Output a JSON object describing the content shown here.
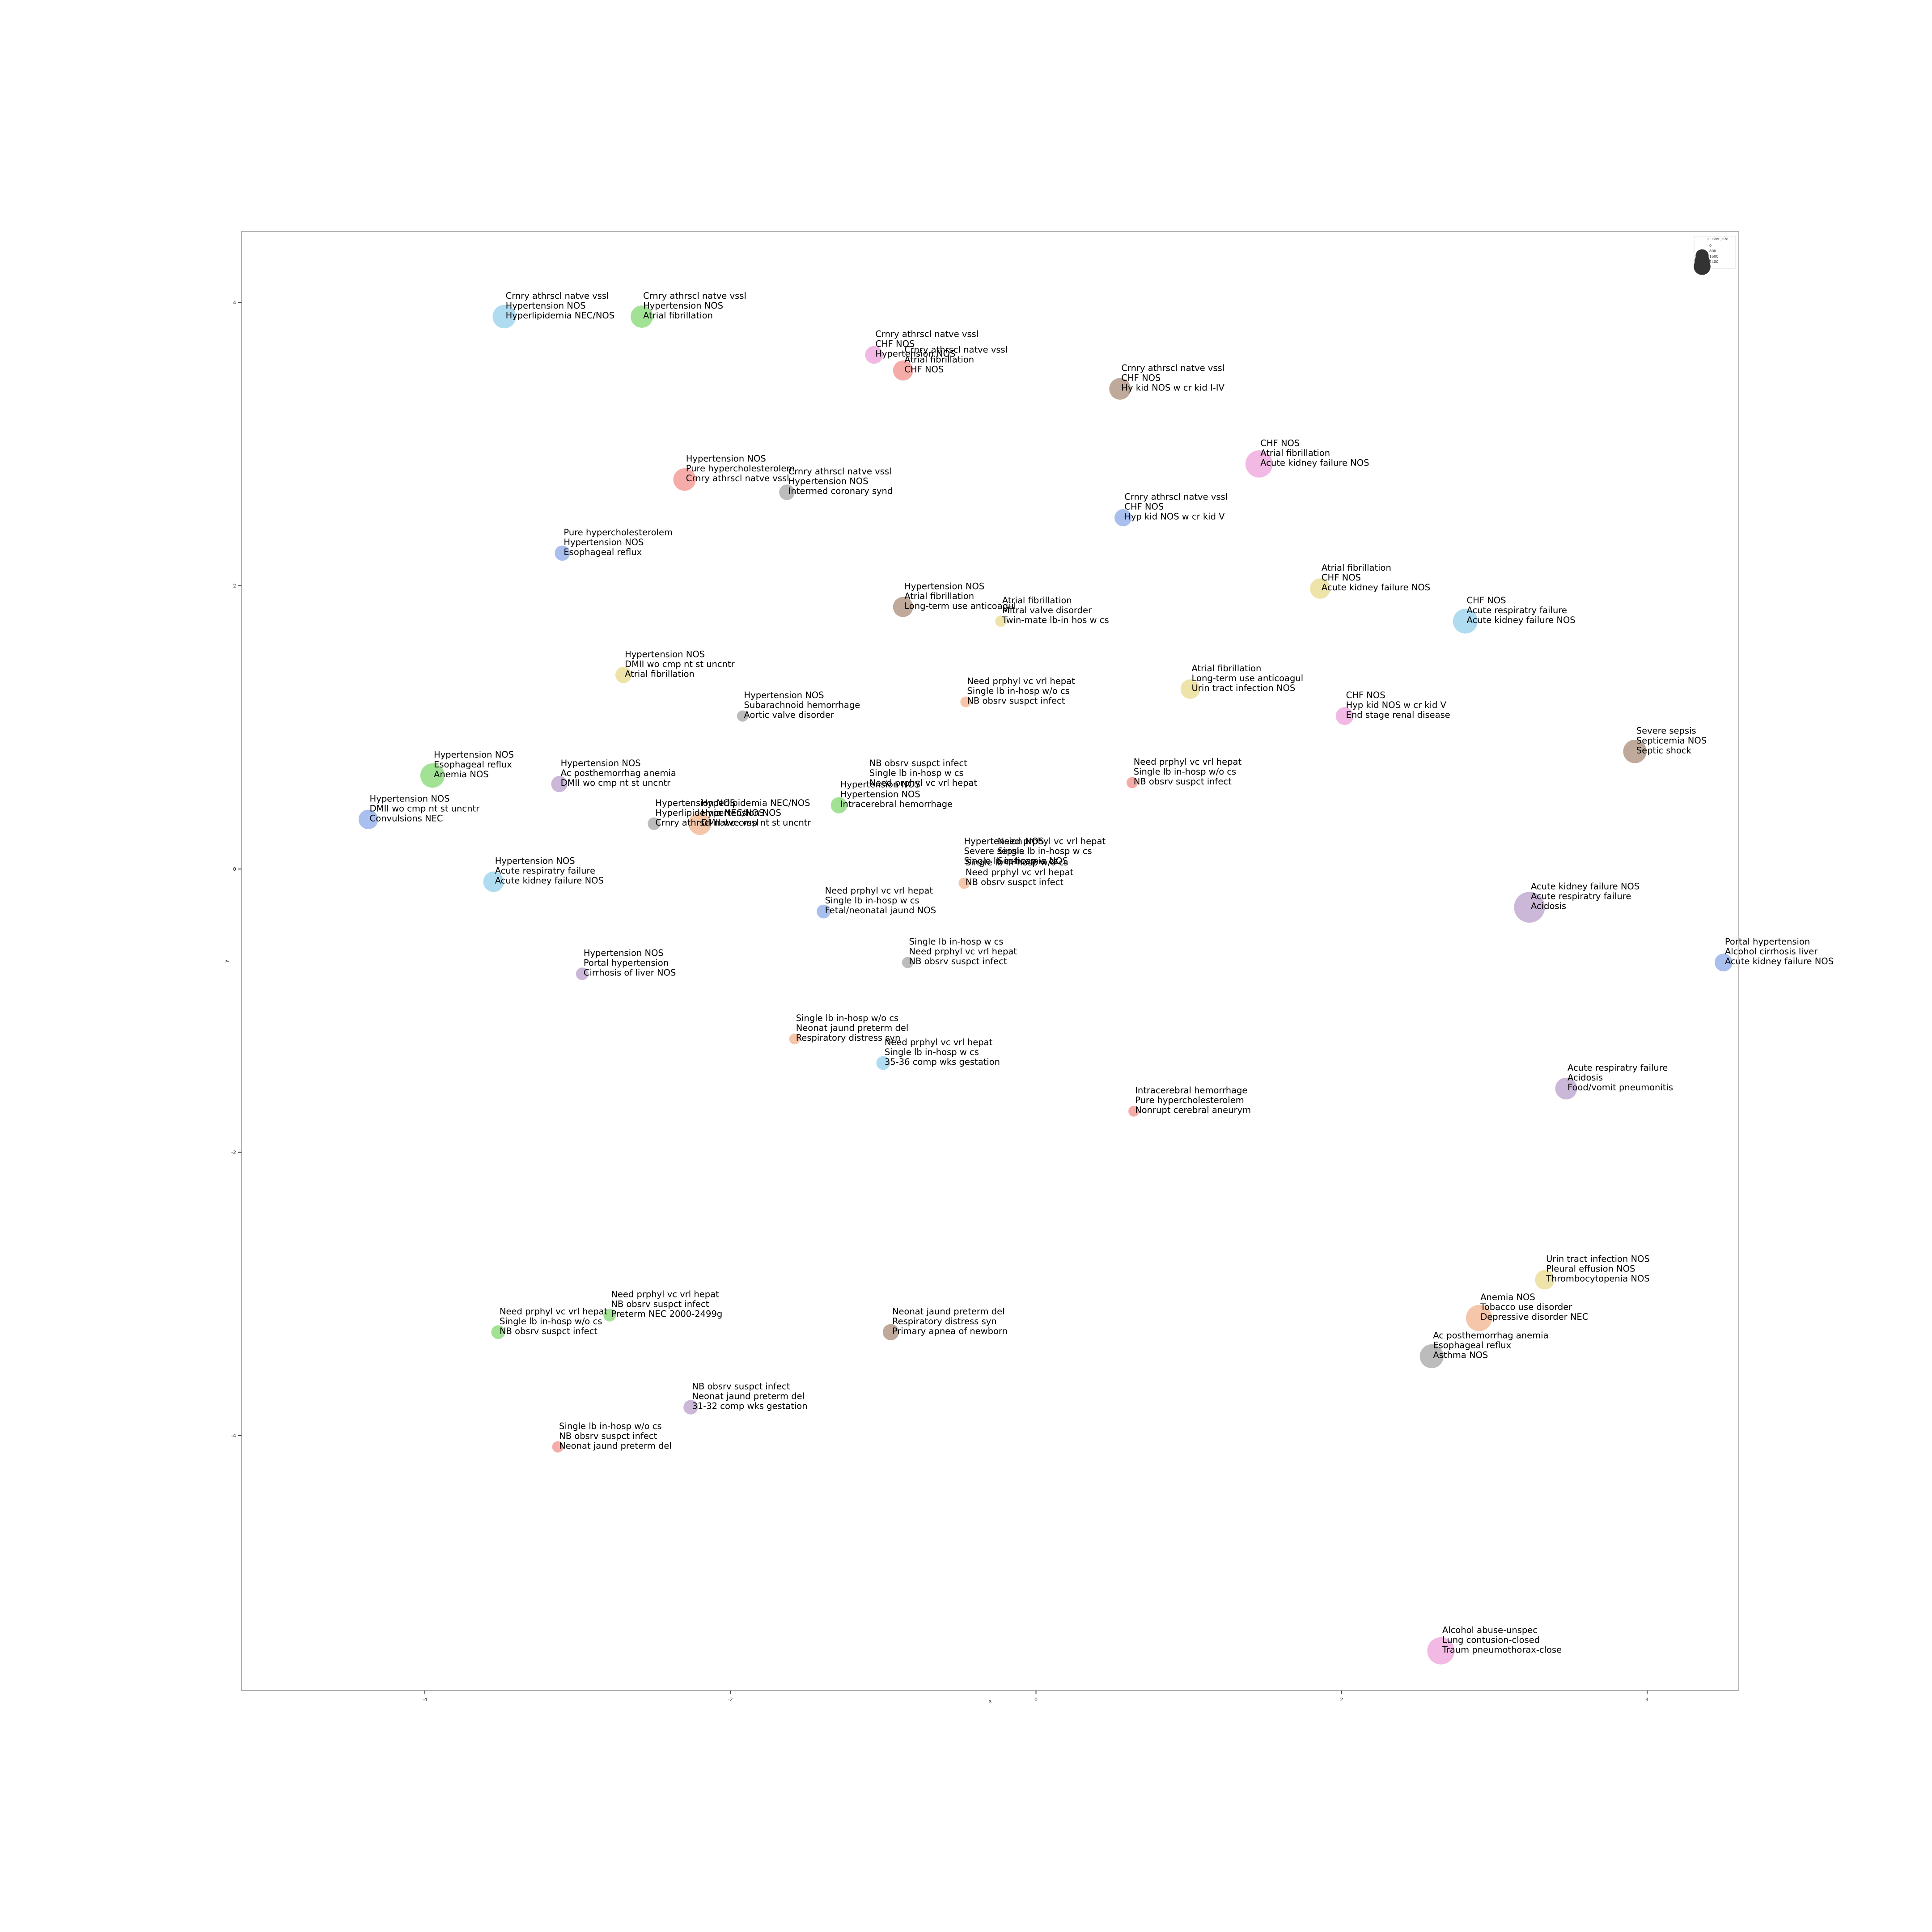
{
  "chart_data": {
    "type": "scatter",
    "xlabel": "x",
    "ylabel": "y",
    "xlim": [
      -5.2,
      4.6
    ],
    "ylim": [
      -5.8,
      4.5
    ],
    "xticks": [
      -4,
      -2,
      0,
      2,
      4
    ],
    "yticks": [
      -4,
      -2,
      0,
      2,
      4
    ],
    "legend": {
      "title": "cluster_size",
      "position": "top-right",
      "entries": [
        {
          "label": "0",
          "size": 0
        },
        {
          "label": "800",
          "size": 800
        },
        {
          "label": "1600",
          "size": 1600
        },
        {
          "label": "2400",
          "size": 2400
        }
      ]
    },
    "points": [
      {
        "x": -3.48,
        "y": 3.9,
        "size": 520,
        "color": "#a6d8f0",
        "labels": [
          "Crnry athrscl natve vssl",
          "Hypertension NOS",
          "Hyperlipidemia NEC/NOS"
        ]
      },
      {
        "x": -2.58,
        "y": 3.9,
        "size": 470,
        "color": "#98df8a",
        "labels": [
          "Crnry athrscl natve vssl",
          "Hypertension NOS",
          "Atrial fibrillation"
        ]
      },
      {
        "x": -1.06,
        "y": 3.63,
        "size": 300,
        "color": "#f0b1e0",
        "labels": [
          "Crnry athrscl natve vssl",
          "CHF NOS",
          "Hypertension NOS"
        ]
      },
      {
        "x": -0.87,
        "y": 3.52,
        "size": 380,
        "color": "#f4a3a0",
        "labels": [
          "Crnry athrscl natve vssl",
          "Atrial fibrillation",
          "CHF NOS"
        ]
      },
      {
        "x": 0.55,
        "y": 3.39,
        "size": 440,
        "color": "#b8a08f",
        "labels": [
          "Crnry athrscl natve vssl",
          "CHF NOS",
          "Hy kid NOS w cr kid I-IV"
        ]
      },
      {
        "x": 1.46,
        "y": 2.86,
        "size": 700,
        "color": "#f0b1e0",
        "labels": [
          "CHF NOS",
          "Atrial fibrillation",
          "Acute kidney failure NOS"
        ]
      },
      {
        "x": -2.3,
        "y": 2.75,
        "size": 480,
        "color": "#f4a3a0",
        "labels": [
          "Hypertension NOS",
          "Pure hypercholesterolem",
          "Crnry athrscl natve vssl"
        ]
      },
      {
        "x": -1.63,
        "y": 2.66,
        "size": 230,
        "color": "#b5b5b5",
        "labels": [
          "Crnry athrscl natve vssl",
          "Hypertension NOS",
          "Intermed coronary synd"
        ]
      },
      {
        "x": 0.57,
        "y": 2.48,
        "size": 280,
        "color": "#a0b8ec",
        "labels": [
          "Crnry athrscl natve vssl",
          "CHF NOS",
          "Hyp kid NOS w cr kid V"
        ]
      },
      {
        "x": -3.1,
        "y": 2.23,
        "size": 220,
        "color": "#a0b8ec",
        "labels": [
          "Pure hypercholesterolem",
          "Hypertension NOS",
          "Esophageal reflux"
        ]
      },
      {
        "x": 1.86,
        "y": 1.98,
        "size": 390,
        "color": "#ece0a0",
        "labels": [
          "Atrial fibrillation",
          "CHF NOS",
          "Acute kidney failure NOS"
        ]
      },
      {
        "x": -0.87,
        "y": 1.85,
        "size": 380,
        "color": "#b8a08f",
        "labels": [
          "Hypertension NOS",
          "Atrial fibrillation",
          "Long-term use anticoagul"
        ]
      },
      {
        "x": -0.23,
        "y": 1.75,
        "size": 120,
        "color": "#ece0a0",
        "labels": [
          "Atrial fibrillation",
          "Mitral valve disorder",
          "Twin-mate lb-in hos w cs"
        ]
      },
      {
        "x": 2.81,
        "y": 1.75,
        "size": 580,
        "color": "#a6d8f0",
        "labels": [
          "CHF NOS",
          "Acute respiratry failure",
          "Acute kidney failure NOS"
        ]
      },
      {
        "x": -2.7,
        "y": 1.37,
        "size": 250,
        "color": "#ece0a0",
        "labels": [
          "Hypertension NOS",
          "DMII wo cmp nt st uncntr",
          "Atrial fibrillation"
        ]
      },
      {
        "x": 1.01,
        "y": 1.27,
        "size": 360,
        "color": "#ece0a0",
        "labels": [
          "Atrial fibrillation",
          "Long-term use anticoagul",
          "Urin tract infection NOS"
        ]
      },
      {
        "x": -0.46,
        "y": 1.18,
        "size": 110,
        "color": "#f4c0a0",
        "labels": [
          "Need prphyl vc vrl hepat",
          "Single lb in-hosp w/o cs",
          "NB obsrv suspct infect"
        ]
      },
      {
        "x": -1.92,
        "y": 1.08,
        "size": 120,
        "color": "#b5b5b5",
        "labels": [
          "Hypertension NOS",
          "Subarachnoid hemorrhage",
          "Aortic valve disorder"
        ]
      },
      {
        "x": 2.02,
        "y": 1.08,
        "size": 300,
        "color": "#f0b1e0",
        "labels": [
          "CHF NOS",
          "Hyp kid NOS w cr kid V",
          "End stage renal disease"
        ]
      },
      {
        "x": 3.92,
        "y": 0.83,
        "size": 520,
        "color": "#b8a08f",
        "labels": [
          "Severe sepsis",
          "Septicemia NOS",
          "Septic shock"
        ]
      },
      {
        "x": -3.95,
        "y": 0.66,
        "size": 560,
        "color": "#98df8a",
        "labels": [
          "Hypertension NOS",
          "Esophageal reflux",
          "Anemia NOS"
        ]
      },
      {
        "x": -3.12,
        "y": 0.6,
        "size": 250,
        "color": "#c5b0d5",
        "labels": [
          "Hypertension NOS",
          "Ac posthemorrhag anemia",
          "DMII wo cmp nt st uncntr"
        ]
      },
      {
        "x": -1.1,
        "y": 0.6,
        "size": 0,
        "color": "#ffffff",
        "labels": [
          "NB obsrv suspct infect",
          "Single lb in-hosp w cs",
          "Need prphyl vc vrl hepat"
        ]
      },
      {
        "x": 0.63,
        "y": 0.61,
        "size": 120,
        "color": "#f4a3a0",
        "labels": [
          "Need prphyl vc vrl hepat",
          "Single lb in-hosp w/o cs",
          "NB obsrv suspct infect"
        ]
      },
      {
        "x": -1.29,
        "y": 0.45,
        "size": 250,
        "color": "#98df8a",
        "labels": [
          "Hypertension NOS",
          "Hypertension NOS",
          "Intracerebral hemorrhage"
        ]
      },
      {
        "x": -4.37,
        "y": 0.35,
        "size": 360,
        "color": "#a0b8ec",
        "labels": [
          "Hypertension NOS",
          "DMII wo cmp nt st uncntr",
          "Convulsions NEC"
        ]
      },
      {
        "x": -2.5,
        "y": 0.32,
        "size": 150,
        "color": "#b5b5b5",
        "labels": [
          "Hypertension NOS",
          "Hyperlipidemia NEC/NOS",
          "Crnry athrscl natve vssl"
        ]
      },
      {
        "x": -2.2,
        "y": 0.32,
        "size": 480,
        "color": "#f4c0a0",
        "labels": [
          "Hyperlipidemia NEC/NOS",
          "Hypertension NOS",
          "DMII wo cmp nt st uncntr"
        ]
      },
      {
        "x": -0.48,
        "y": 0.05,
        "size": 0,
        "color": "#ffffff",
        "labels": [
          "Hypertension NOS",
          "Severe sepsis",
          "Single lb in-hosp w cs"
        ]
      },
      {
        "x": -0.26,
        "y": 0.05,
        "size": 0,
        "color": "#ffffff",
        "labels": [
          "Need prphyl vc vrl hepat",
          "Single lb in-hosp w cs",
          "Septicemia NOS"
        ]
      },
      {
        "x": -0.47,
        "y": -0.1,
        "size": 120,
        "color": "#f4c0a0",
        "labels": [
          "Single lb in-hosp w/o cs",
          "Need prphyl vc vrl hepat",
          "NB obsrv suspct infect"
        ]
      },
      {
        "x": -3.55,
        "y": -0.09,
        "size": 400,
        "color": "#a6d8f0",
        "labels": [
          "Hypertension NOS",
          "Acute respiratry failure",
          "Acute kidney failure NOS"
        ]
      },
      {
        "x": 3.23,
        "y": -0.27,
        "size": 900,
        "color": "#c5b0d5",
        "labels": [
          "Acute kidney failure NOS",
          "Acute respiratry failure",
          "Acidosis"
        ]
      },
      {
        "x": -1.39,
        "y": -0.3,
        "size": 180,
        "color": "#a0b8ec",
        "labels": [
          "Need prphyl vc vrl hepat",
          "Single lb in-hosp w cs",
          "Fetal/neonatal jaund NOS"
        ]
      },
      {
        "x": 4.5,
        "y": -0.66,
        "size": 300,
        "color": "#a0b8ec",
        "labels": [
          "Portal hypertension",
          "Alcohol cirrhosis liver",
          "Acute kidney failure NOS"
        ]
      },
      {
        "x": -0.84,
        "y": -0.66,
        "size": 120,
        "color": "#b5b5b5",
        "labels": [
          "Single lb in-hosp w cs",
          "Need prphyl vc vrl hepat",
          "NB obsrv suspct infect"
        ]
      },
      {
        "x": -2.97,
        "y": -0.74,
        "size": 150,
        "color": "#c5b0d5",
        "labels": [
          "Hypertension NOS",
          "Portal hypertension",
          "Cirrhosis of liver NOS"
        ]
      },
      {
        "x": -1.58,
        "y": -1.2,
        "size": 110,
        "color": "#f4c0a0",
        "labels": [
          "Single lb in-hosp w/o cs",
          "Neonat jaund preterm del",
          "Respiratory distress syn"
        ]
      },
      {
        "x": -1.0,
        "y": -1.37,
        "size": 180,
        "color": "#a6d8f0",
        "labels": [
          "Need prphyl vc vrl hepat",
          "Single lb in-hosp w cs",
          "35-36 comp wks gestation"
        ]
      },
      {
        "x": 3.47,
        "y": -1.55,
        "size": 450,
        "color": "#c5b0d5",
        "labels": [
          "Acute respiratry failure",
          "Acidosis",
          "Food/vomit pneumonitis"
        ]
      },
      {
        "x": 0.64,
        "y": -1.71,
        "size": 110,
        "color": "#f4a3a0",
        "labels": [
          "Intracerebral hemorrhage",
          "Pure hypercholesterolem",
          "Nonrupt cerebral aneurym"
        ]
      },
      {
        "x": 3.33,
        "y": -2.9,
        "size": 360,
        "color": "#ece0a0",
        "labels": [
          "Urin tract infection NOS",
          "Pleural effusion NOS",
          "Thrombocytopenia NOS"
        ]
      },
      {
        "x": 2.9,
        "y": -3.17,
        "size": 650,
        "color": "#f4c0a0",
        "labels": [
          "Anemia NOS",
          "Tobacco use disorder",
          "Depressive disorder NEC"
        ]
      },
      {
        "x": -2.79,
        "y": -3.15,
        "size": 150,
        "color": "#98df8a",
        "labels": [
          "Need prphyl vc vrl hepat",
          "NB obsrv suspct infect",
          "Preterm NEC 2000-2499g"
        ]
      },
      {
        "x": -3.52,
        "y": -3.27,
        "size": 180,
        "color": "#98df8a",
        "labels": [
          "Need prphyl vc vrl hepat",
          "Single lb in-hosp w/o cs",
          "NB obsrv suspct infect"
        ]
      },
      {
        "x": -0.95,
        "y": -3.27,
        "size": 250,
        "color": "#b8a08f",
        "labels": [
          "Neonat jaund preterm del",
          "Respiratory distress syn",
          "Primary apnea of newborn"
        ]
      },
      {
        "x": 2.59,
        "y": -3.44,
        "size": 540,
        "color": "#b5b5b5",
        "labels": [
          "Ac posthemorrhag anemia",
          "Esophageal reflux",
          "Asthma NOS"
        ]
      },
      {
        "x": -2.26,
        "y": -3.8,
        "size": 200,
        "color": "#c5b0d5",
        "labels": [
          "NB obsrv suspct infect",
          "Neonat jaund preterm del",
          "31-32 comp wks gestation"
        ]
      },
      {
        "x": -3.13,
        "y": -4.08,
        "size": 120,
        "color": "#f4a3a0",
        "labels": [
          "Single lb in-hosp w/o cs",
          "NB obsrv suspct infect",
          "Neonat jaund preterm del"
        ]
      },
      {
        "x": 2.65,
        "y": -5.52,
        "size": 700,
        "color": "#f0b1e0",
        "labels": [
          "Alcohol abuse-unspec",
          "Lung contusion-closed",
          "Traum pneumothorax-close"
        ]
      }
    ]
  }
}
